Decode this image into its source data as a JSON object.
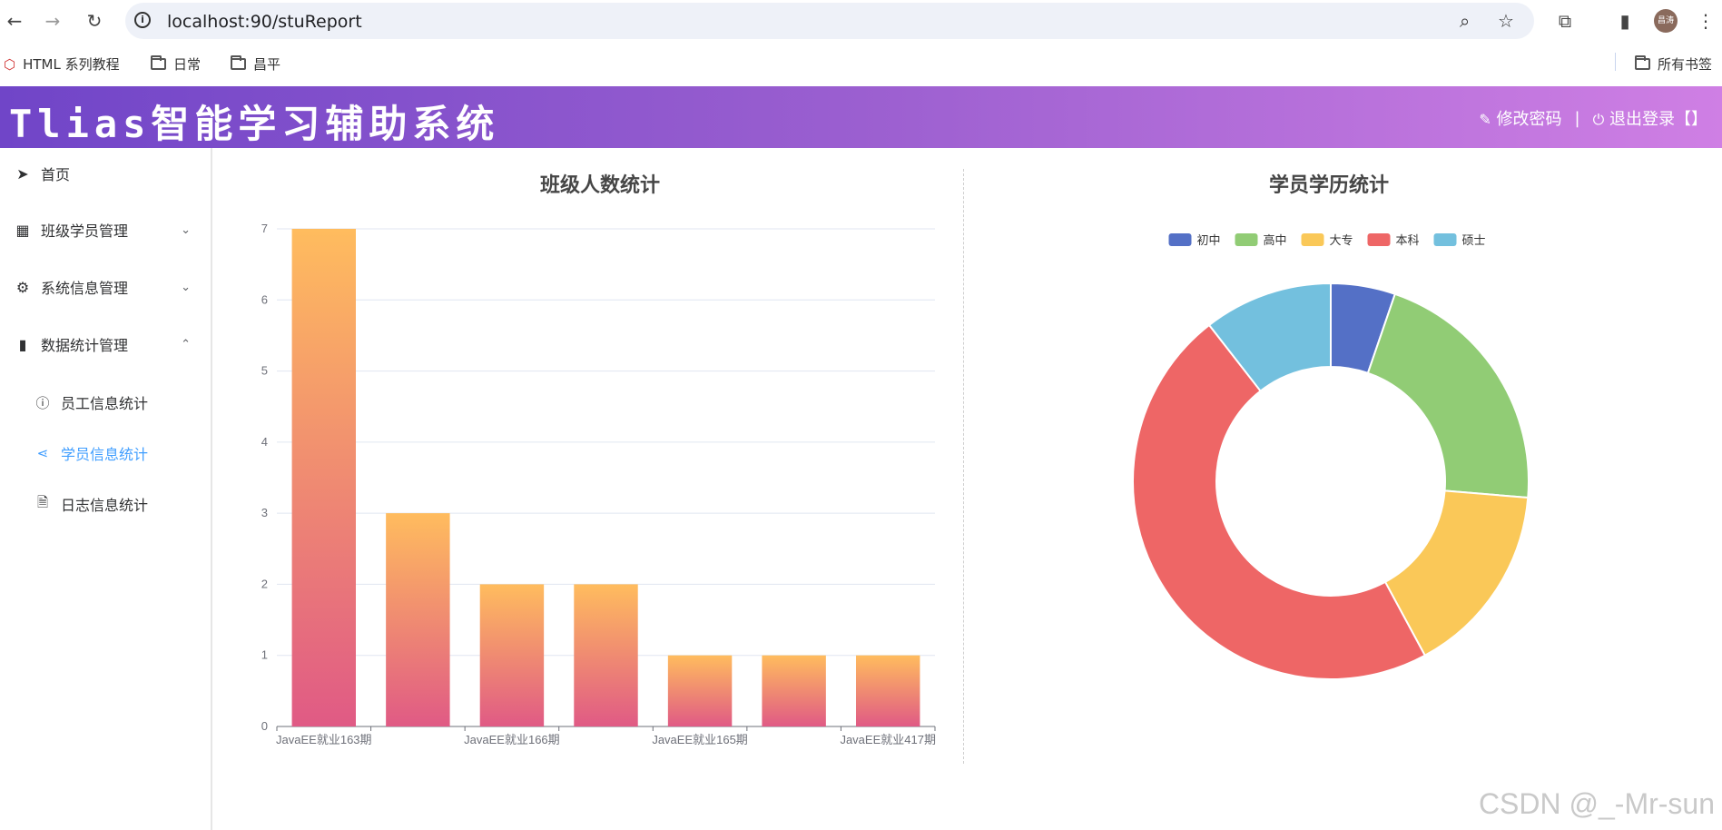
{
  "browser": {
    "url": "localhost:90/stuReport",
    "avatar_text": "昌涛",
    "bookmarks": [
      {
        "label": "HTML 系列教程"
      },
      {
        "label": "日常"
      },
      {
        "label": "昌平"
      }
    ],
    "all_bookmarks_label": "所有书签"
  },
  "header": {
    "title": "Tlias智能学习辅助系统",
    "change_password": "修改密码",
    "separator": "|",
    "logout": "退出登录【】"
  },
  "sidebar": {
    "items": [
      {
        "label": "首页",
        "icon": "paper-plane-icon"
      },
      {
        "label": "班级学员管理",
        "icon": "grid-icon",
        "arrow": "⌄"
      },
      {
        "label": "系统信息管理",
        "icon": "gear-icon",
        "arrow": "⌄"
      },
      {
        "label": "数据统计管理",
        "icon": "bar-chart-icon",
        "arrow": "⌃"
      }
    ],
    "sub_items": [
      {
        "label": "员工信息统计",
        "icon": "info-icon"
      },
      {
        "label": "学员信息统计",
        "icon": "share-icon",
        "active": true
      },
      {
        "label": "日志信息统计",
        "icon": "document-icon"
      }
    ]
  },
  "chart_data": [
    {
      "type": "bar",
      "title": "班级人数统计",
      "categories": [
        "JavaEE就业163期",
        "",
        "JavaEE就业166期",
        "",
        "JavaEE就业165期",
        "",
        "JavaEE就业417期"
      ],
      "values": [
        7,
        3,
        2,
        2,
        1,
        1,
        1
      ],
      "ylim": [
        0,
        7
      ],
      "yticks": [
        "0",
        "1",
        "2",
        "3",
        "4",
        "5",
        "6",
        "7"
      ],
      "grid": true,
      "colors": {
        "top": "#ffbc5e",
        "bottom": "#e05a85"
      }
    },
    {
      "type": "pie",
      "title": "学员学历统计",
      "legend_position": "top",
      "slices": [
        {
          "name": "初中",
          "value": 1,
          "color": "#5470c6"
        },
        {
          "name": "高中",
          "value": 4,
          "color": "#91cc75"
        },
        {
          "name": "大专",
          "value": 3,
          "color": "#fac858"
        },
        {
          "name": "本科",
          "value": 9,
          "color": "#ee6666"
        },
        {
          "name": "硕士",
          "value": 2,
          "color": "#73c0de"
        }
      ]
    }
  ],
  "watermark": "CSDN @_-Mr-sun"
}
